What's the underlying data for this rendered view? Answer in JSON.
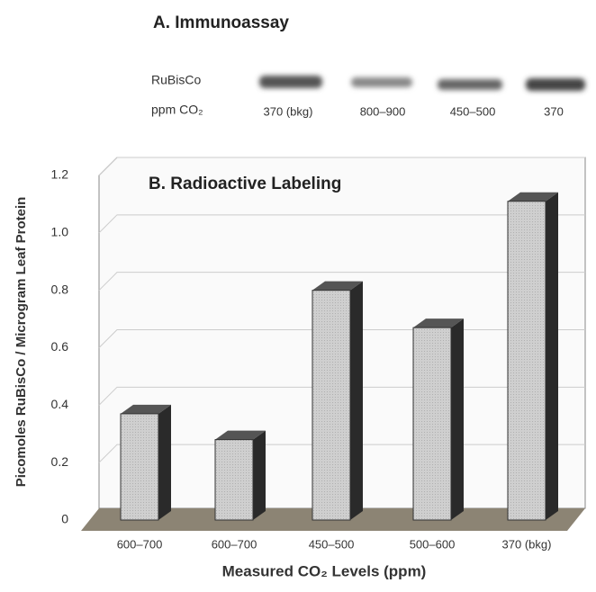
{
  "panel_a": {
    "title": "A. Immunoassay",
    "row_labels": [
      "RuBisCo",
      "ppm CO₂"
    ],
    "lanes": [
      "370 (bkg)",
      "800–900",
      "450–500",
      "370"
    ]
  },
  "chart_data": {
    "type": "bar3d",
    "title": "B. Radioactive Labeling",
    "x_label": "Measured CO₂ Levels (ppm)",
    "y_label": "Picomoles RuBisCo / Microgram Leaf Protein",
    "categories": [
      "600–700",
      "600–700",
      "450–500",
      "500–600",
      "370 (bkg)"
    ],
    "values": [
      0.37,
      0.28,
      0.8,
      0.67,
      1.11
    ],
    "color": "#c8c8c8",
    "ylim": [
      0,
      1.2
    ],
    "yticks": [
      0,
      0.2,
      0.4,
      0.6,
      0.8,
      {
        "value": 1,
        "label": "1.0"
      },
      1.2
    ],
    "grid": true
  }
}
